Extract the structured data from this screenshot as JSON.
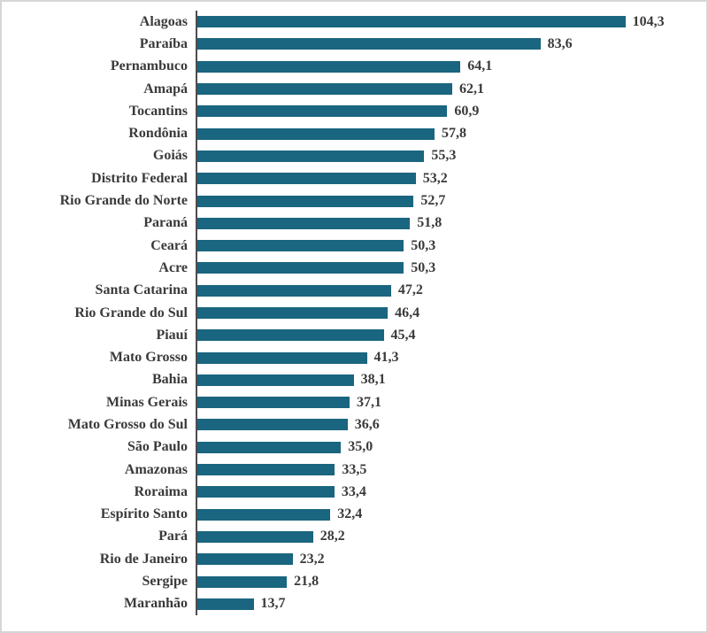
{
  "chart_data": {
    "type": "bar",
    "orientation": "horizontal",
    "title": "",
    "xlabel": "",
    "ylabel": "",
    "xlim": [
      0,
      124
    ],
    "grid": false,
    "legend": "none",
    "bar_color": "#1a657f",
    "axis_line_color": "#4d4d4d",
    "label_color": "#3a3a3a",
    "categories": [
      "Alagoas",
      "Paraíba",
      "Pernambuco",
      "Amapá",
      "Tocantins",
      "Rondônia",
      "Goiás",
      "Distrito Federal",
      "Rio Grande do Norte",
      "Paraná",
      "Ceará",
      "Acre",
      "Santa Catarina",
      "Rio Grande do Sul",
      "Piauí",
      "Mato Grosso",
      "Bahia",
      "Minas Gerais",
      "Mato Grosso do Sul",
      "São Paulo",
      "Amazonas",
      "Roraima",
      "Espírito Santo",
      "Pará",
      "Rio de Janeiro",
      "Sergipe",
      "Maranhão"
    ],
    "values": [
      104.3,
      83.6,
      64.1,
      62.1,
      60.9,
      57.8,
      55.3,
      53.2,
      52.7,
      51.8,
      50.3,
      50.3,
      47.2,
      46.4,
      45.4,
      41.3,
      38.1,
      37.1,
      36.6,
      35.0,
      33.5,
      33.4,
      32.4,
      28.2,
      23.2,
      21.8,
      13.7
    ],
    "value_labels": [
      "104,3",
      "83,6",
      "64,1",
      "62,1",
      "60,9",
      "57,8",
      "55,3",
      "53,2",
      "52,7",
      "51,8",
      "50,3",
      "50,3",
      "47,2",
      "46,4",
      "45,4",
      "41,3",
      "38,1",
      "37,1",
      "36,6",
      "35,0",
      "33,5",
      "33,4",
      "32,4",
      "28,2",
      "23,2",
      "21,8",
      "13,7"
    ]
  }
}
